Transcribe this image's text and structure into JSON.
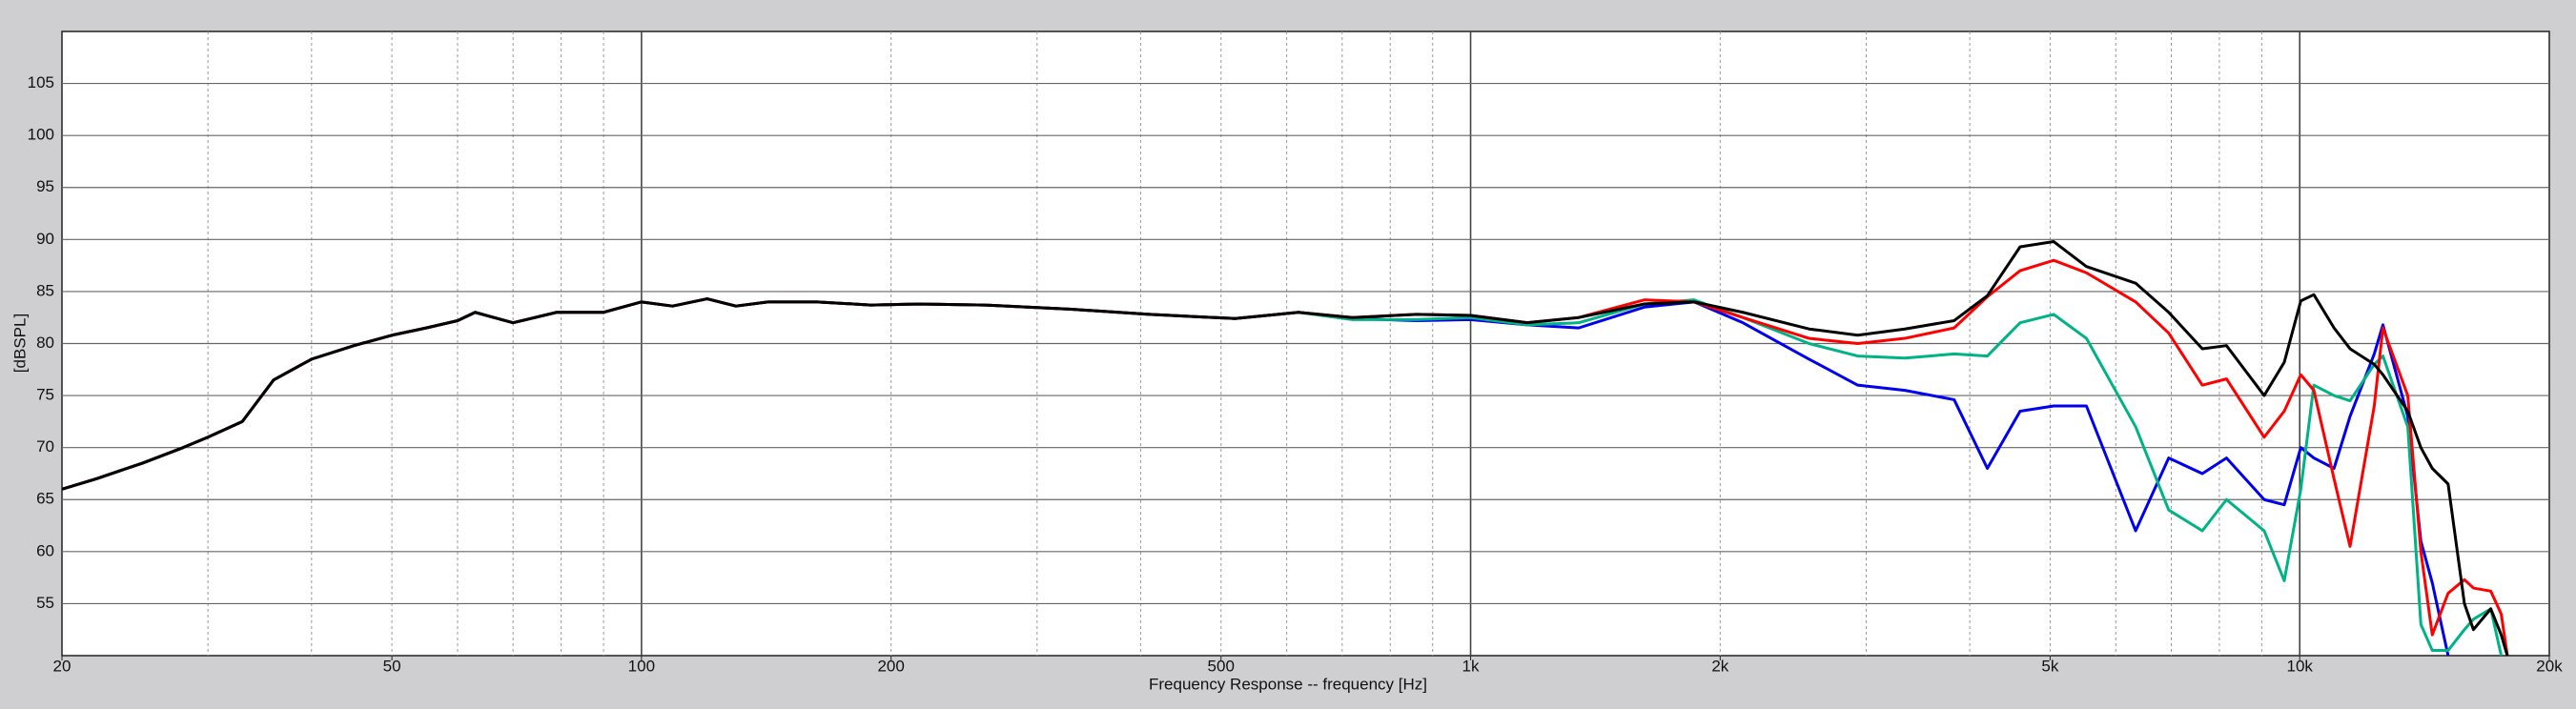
{
  "chart_data": {
    "type": "line",
    "x_label": "Frequency Response -- frequency [Hz]",
    "y_label": "[dBSPL]",
    "x_scale": "log",
    "grid": true,
    "minor_grid": true,
    "xlim": [
      20,
      20000
    ],
    "ylim": [
      50,
      110
    ],
    "xticks": [
      20,
      50,
      100,
      200,
      500,
      {
        "value": 1000,
        "label": "1k"
      },
      {
        "value": 2000,
        "label": "2k"
      },
      {
        "value": 5000,
        "label": "5k"
      },
      {
        "value": 10000,
        "label": "10k"
      },
      {
        "value": 20000,
        "label": "20k"
      }
    ],
    "yticks": [
      55,
      60,
      65,
      70,
      75,
      80,
      85,
      90,
      95,
      100,
      105
    ],
    "x": [
      20,
      22,
      25,
      28,
      30,
      33,
      36,
      40,
      45,
      50,
      55,
      60,
      63,
      70,
      79,
      90,
      100,
      109,
      120,
      130,
      142,
      163,
      189,
      216,
      260,
      330,
      410,
      520,
      620,
      720,
      860,
      1000,
      1170,
      1350,
      1620,
      1860,
      2130,
      2560,
      2930,
      3340,
      3830,
      4200,
      4600,
      5050,
      5530,
      6340,
      6950,
      7630,
      8160,
      9060,
      9580,
      10030,
      10400,
      11000,
      11500,
      12300,
      12600,
      13500,
      14000,
      14450,
      15100,
      15800,
      16200,
      17000,
      17500,
      17800
    ],
    "series": [
      {
        "color": "#000000",
        "values": [
          66,
          67,
          68.5,
          70,
          71,
          72.5,
          76.5,
          78.5,
          79.8,
          80.8,
          81.5,
          82.2,
          83,
          82,
          83,
          83,
          84,
          83.6,
          84.3,
          83.6,
          84,
          84,
          83.7,
          83.8,
          83.7,
          83.3,
          82.8,
          82.4,
          83,
          82.5,
          82.8,
          82.7,
          82,
          82.5,
          83.8,
          84,
          83,
          81.4,
          80.8,
          81.4,
          82.2,
          84.6,
          89.3,
          89.8,
          87.4,
          85.8,
          83,
          79.5,
          79.8,
          75,
          78.2,
          84.1,
          84.7,
          81.5,
          79.5,
          78,
          77,
          73.5,
          70,
          68,
          66.5,
          55,
          52.5,
          54.5,
          52,
          50
        ]
      },
      {
        "color": "#ff0000",
        "values": [
          66,
          67,
          68.5,
          70,
          71,
          72.5,
          76.5,
          78.5,
          79.8,
          80.8,
          81.5,
          82.2,
          83,
          82,
          83,
          83,
          84,
          83.6,
          84.3,
          83.6,
          84,
          84,
          83.7,
          83.8,
          83.7,
          83.3,
          82.8,
          82.4,
          83,
          82.5,
          82.8,
          82.7,
          82,
          82.5,
          84.2,
          84,
          82.5,
          80.5,
          80,
          80.5,
          81.5,
          84.5,
          87,
          88,
          86.8,
          84,
          81,
          76,
          76.6,
          71,
          73.5,
          77,
          75.5,
          67,
          60.5,
          74,
          81.5,
          75,
          60,
          52,
          56,
          57.3,
          56.5,
          56.2,
          54,
          50
        ]
      },
      {
        "color": "#00b386",
        "values": [
          66,
          67,
          68.5,
          70,
          71,
          72.5,
          76.5,
          78.5,
          79.8,
          80.8,
          81.5,
          82.2,
          83,
          82,
          83,
          83,
          84,
          83.6,
          84.3,
          83.6,
          84,
          84,
          83.7,
          83.8,
          83.7,
          83.3,
          82.8,
          82.4,
          83,
          82.3,
          82.3,
          82.5,
          81.8,
          82,
          83.8,
          84.2,
          82.5,
          80,
          78.8,
          78.6,
          79,
          78.8,
          82,
          82.8,
          80.5,
          72,
          64,
          62,
          65,
          62,
          57.2,
          66,
          76,
          75,
          74.5,
          78,
          78.8,
          72,
          53,
          50.5,
          50.5,
          52.5,
          53.5,
          54.5,
          50,
          null
        ]
      },
      {
        "color": "#0000ee",
        "values": [
          66,
          67,
          68.5,
          70,
          71,
          72.5,
          76.5,
          78.5,
          79.8,
          80.8,
          81.5,
          82.2,
          83,
          82,
          83,
          83,
          84,
          83.6,
          84.3,
          83.6,
          84,
          84,
          83.7,
          83.8,
          83.7,
          83.3,
          82.8,
          82.4,
          83,
          82.4,
          82.2,
          82.3,
          81.8,
          81.5,
          83.5,
          84,
          82,
          78.5,
          76,
          75.5,
          74.6,
          68,
          73.5,
          74,
          74,
          62,
          69,
          67.5,
          69,
          65,
          64.5,
          70,
          69,
          68,
          73,
          79,
          81.8,
          73,
          61,
          57,
          50,
          null,
          null,
          null,
          null,
          null
        ]
      }
    ]
  }
}
